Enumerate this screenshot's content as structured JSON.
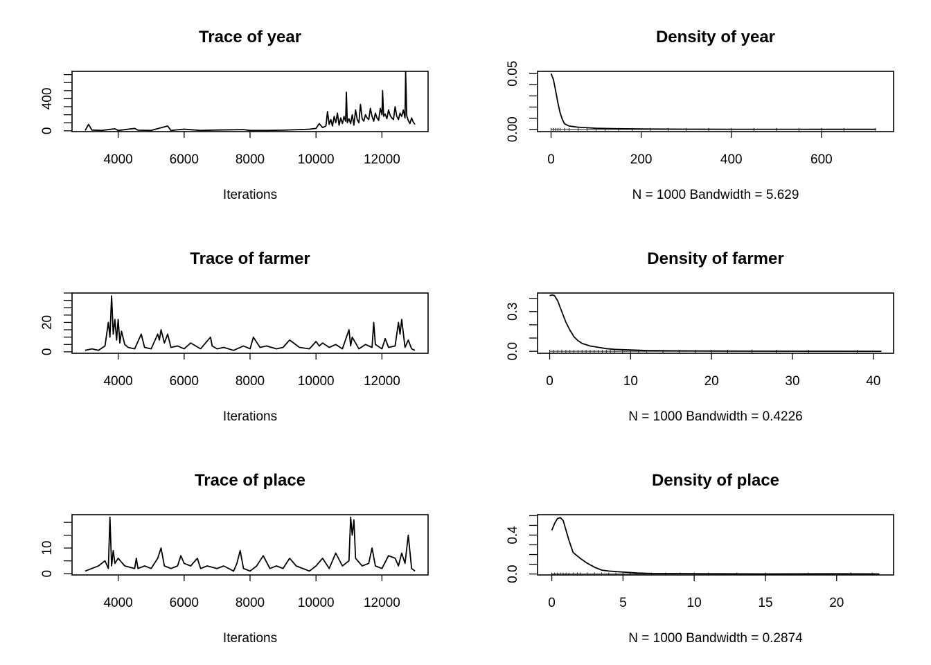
{
  "chart_data": [
    {
      "id": "trace-year",
      "type": "line",
      "title": "Trace of year",
      "xlabel": "Iterations",
      "x_ticks": [
        4000,
        6000,
        8000,
        10000,
        12000
      ],
      "y_ticks": [
        0,
        400
      ],
      "y_minor_step": 100,
      "xlim": [
        2600,
        13400
      ],
      "ylim": [
        -10,
        740
      ],
      "series": [
        {
          "x": [
            3000,
            3100,
            3200,
            3500,
            3900,
            4000,
            4500,
            4600,
            5000,
            5500,
            5600,
            6000,
            6500,
            7000,
            7800,
            8000,
            8500,
            9000,
            9500,
            9800,
            10000,
            10100,
            10200,
            10300,
            10350,
            10400,
            10450,
            10500,
            10550,
            10600,
            10650,
            10700,
            10750,
            10800,
            10850,
            10900,
            10920,
            10950,
            11000,
            11050,
            11100,
            11150,
            11200,
            11250,
            11300,
            11350,
            11400,
            11450,
            11500,
            11550,
            11600,
            11650,
            11700,
            11750,
            11800,
            11850,
            11900,
            11950,
            12000,
            12020,
            12050,
            12100,
            12150,
            12200,
            12250,
            12300,
            12350,
            12400,
            12450,
            12500,
            12550,
            12600,
            12650,
            12700,
            12720,
            12750,
            12800,
            12850,
            12900,
            12950,
            13000
          ],
          "y": [
            5,
            80,
            10,
            5,
            25,
            5,
            30,
            8,
            5,
            60,
            5,
            20,
            5,
            10,
            15,
            5,
            5,
            8,
            15,
            20,
            30,
            90,
            40,
            60,
            240,
            80,
            140,
            60,
            180,
            100,
            220,
            70,
            160,
            90,
            180,
            120,
            480,
            100,
            150,
            90,
            200,
            70,
            260,
            140,
            100,
            330,
            150,
            120,
            200,
            160,
            140,
            280,
            180,
            120,
            220,
            160,
            130,
            280,
            200,
            500,
            180,
            210,
            150,
            260,
            190,
            160,
            140,
            300,
            180,
            140,
            220,
            180,
            260,
            160,
            740,
            190,
            130,
            90,
            160,
            110,
            80
          ]
        }
      ]
    },
    {
      "id": "density-year",
      "type": "line",
      "title": "Density of year",
      "xlabel": "N = 1000   Bandwidth = 5.629",
      "x_ticks": [
        0,
        200,
        400,
        600
      ],
      "y_ticks": [
        0.0,
        0.05
      ],
      "y_tick_labels": [
        "0.00",
        "0.05"
      ],
      "y_minor_step": 0.01,
      "xlim": [
        -30,
        760
      ],
      "ylim": [
        -0.002,
        0.052
      ],
      "series": [
        {
          "x": [
            0,
            5,
            10,
            15,
            20,
            25,
            30,
            40,
            50,
            60,
            80,
            100,
            150,
            200,
            300,
            400,
            500,
            600,
            720
          ],
          "y": [
            0.05,
            0.045,
            0.035,
            0.024,
            0.015,
            0.009,
            0.005,
            0.003,
            0.0025,
            0.002,
            0.0015,
            0.001,
            0.0006,
            0.0004,
            0.0002,
            0.0001,
            0.0001,
            5e-05,
            2e-05
          ]
        }
      ],
      "rug": [
        0,
        5,
        10,
        15,
        20,
        30,
        40,
        60,
        80,
        100,
        120,
        150,
        180,
        220,
        260,
        300,
        350,
        400,
        450,
        500,
        550,
        600,
        650,
        720
      ]
    },
    {
      "id": "trace-farmer",
      "type": "line",
      "title": "Trace of farmer",
      "xlabel": "Iterations",
      "x_ticks": [
        4000,
        6000,
        8000,
        10000,
        12000
      ],
      "y_ticks": [
        0,
        20
      ],
      "y_minor_step": 5,
      "xlim": [
        2600,
        13400
      ],
      "ylim": [
        -1,
        40
      ],
      "series": [
        {
          "x": [
            3000,
            3200,
            3400,
            3600,
            3700,
            3750,
            3800,
            3850,
            3900,
            3950,
            4000,
            4050,
            4100,
            4200,
            4300,
            4500,
            4700,
            4800,
            5000,
            5200,
            5250,
            5300,
            5400,
            5500,
            5600,
            5800,
            6000,
            6200,
            6500,
            6800,
            6850,
            7000,
            7200,
            7500,
            7800,
            8000,
            8100,
            8300,
            8500,
            8800,
            9000,
            9200,
            9500,
            9800,
            10000,
            10100,
            10200,
            10400,
            10600,
            10800,
            11000,
            11050,
            11100,
            11300,
            11500,
            11700,
            11750,
            11800,
            12000,
            12100,
            12200,
            12400,
            12500,
            12550,
            12600,
            12700,
            12800,
            12900,
            13000
          ],
          "y": [
            1,
            2,
            1,
            4,
            20,
            10,
            38,
            12,
            22,
            8,
            22,
            6,
            14,
            5,
            3,
            2,
            12,
            3,
            2,
            12,
            8,
            15,
            6,
            12,
            3,
            4,
            2,
            6,
            2,
            10,
            4,
            2,
            3,
            1,
            4,
            2,
            10,
            3,
            4,
            2,
            3,
            8,
            3,
            2,
            7,
            4,
            6,
            3,
            5,
            2,
            15,
            4,
            10,
            2,
            5,
            3,
            20,
            5,
            2,
            9,
            3,
            4,
            20,
            12,
            22,
            3,
            8,
            2,
            1
          ]
        }
      ]
    },
    {
      "id": "density-farmer",
      "type": "line",
      "title": "Density of farmer",
      "xlabel": "N = 1000   Bandwidth = 0.4226",
      "x_ticks": [
        0,
        10,
        20,
        30,
        40
      ],
      "y_ticks": [
        0.0,
        0.3
      ],
      "y_tick_labels": [
        "0.0",
        "0.3"
      ],
      "y_minor_step": 0.1,
      "xlim": [
        -1.5,
        42.5
      ],
      "ylim": [
        -0.015,
        0.44
      ],
      "series": [
        {
          "x": [
            0,
            0.3,
            0.6,
            1,
            1.5,
            2,
            2.5,
            3,
            3.5,
            4,
            5,
            6,
            7,
            8,
            9,
            10,
            12,
            15,
            20,
            25,
            30,
            35,
            41
          ],
          "y": [
            0.42,
            0.425,
            0.42,
            0.38,
            0.3,
            0.22,
            0.16,
            0.11,
            0.08,
            0.06,
            0.04,
            0.03,
            0.02,
            0.015,
            0.012,
            0.01,
            0.006,
            0.004,
            0.002,
            0.001,
            0.0008,
            0.0005,
            0.0003
          ]
        }
      ],
      "rug": [
        0,
        0.5,
        1,
        1.5,
        2,
        2.5,
        3,
        3.5,
        4,
        4.5,
        5,
        5.5,
        6,
        6.5,
        7,
        7.5,
        8,
        9,
        10,
        11,
        12,
        14,
        16,
        18,
        20,
        22,
        25,
        28,
        32,
        38
      ]
    },
    {
      "id": "trace-place",
      "type": "line",
      "title": "Trace of place",
      "xlabel": "Iterations",
      "x_ticks": [
        4000,
        6000,
        8000,
        10000,
        12000
      ],
      "y_ticks": [
        0,
        10
      ],
      "y_minor_step": 5,
      "xlim": [
        2600,
        13400
      ],
      "ylim": [
        -0.5,
        23
      ],
      "series": [
        {
          "x": [
            3000,
            3200,
            3400,
            3600,
            3700,
            3750,
            3800,
            3850,
            3900,
            4000,
            4200,
            4500,
            4550,
            4600,
            4800,
            5000,
            5200,
            5300,
            5400,
            5600,
            5800,
            5900,
            6000,
            6200,
            6400,
            6500,
            6700,
            7000,
            7200,
            7500,
            7600,
            7700,
            7800,
            8000,
            8200,
            8400,
            8600,
            8800,
            9000,
            9200,
            9400,
            9600,
            9800,
            10000,
            10200,
            10400,
            10600,
            10800,
            11000,
            11050,
            11100,
            11150,
            11200,
            11400,
            11600,
            11700,
            11800,
            12000,
            12200,
            12400,
            12500,
            12600,
            12700,
            12800,
            12900,
            13000
          ],
          "y": [
            1,
            2,
            3,
            5,
            2,
            22,
            3,
            9,
            4,
            6,
            3,
            2,
            6,
            2,
            3,
            2,
            6,
            10,
            3,
            2,
            3,
            7,
            4,
            3,
            6,
            2,
            3,
            2,
            3,
            1,
            4,
            9,
            2,
            1,
            3,
            7,
            2,
            3,
            2,
            6,
            3,
            2,
            1,
            3,
            6,
            2,
            8,
            3,
            5,
            22,
            15,
            21,
            6,
            3,
            4,
            10,
            3,
            2,
            7,
            6,
            3,
            8,
            4,
            15,
            2,
            1
          ]
        }
      ]
    },
    {
      "id": "density-place",
      "type": "line",
      "title": "Density of place",
      "xlabel": "N = 1000   Bandwidth = 0.2874",
      "x_ticks": [
        0,
        5,
        10,
        15,
        20
      ],
      "y_ticks": [
        0.0,
        0.4
      ],
      "y_tick_labels": [
        "0.0",
        "0.4"
      ],
      "y_minor_step": 0.1,
      "xlim": [
        -1,
        24
      ],
      "ylim": [
        -0.01,
        0.61
      ],
      "series": [
        {
          "x": [
            0,
            0.2,
            0.4,
            0.6,
            0.8,
            1,
            1.2,
            1.5,
            2,
            2.5,
            3,
            3.5,
            4,
            5,
            6,
            7,
            8,
            10,
            12,
            15,
            20,
            23
          ],
          "y": [
            0.45,
            0.52,
            0.57,
            0.58,
            0.55,
            0.45,
            0.35,
            0.22,
            0.16,
            0.11,
            0.07,
            0.04,
            0.03,
            0.02,
            0.01,
            0.005,
            0.004,
            0.003,
            0.002,
            0.001,
            0.002,
            0.001
          ]
        }
      ],
      "rug": [
        0,
        0.2,
        0.4,
        0.6,
        0.8,
        1,
        1.2,
        1.5,
        1.8,
        2,
        2.5,
        3,
        3.5,
        4,
        4.5,
        5,
        5.5,
        6,
        6.5,
        7,
        8,
        9,
        10,
        11,
        13,
        15,
        18,
        21,
        22.5
      ]
    }
  ]
}
